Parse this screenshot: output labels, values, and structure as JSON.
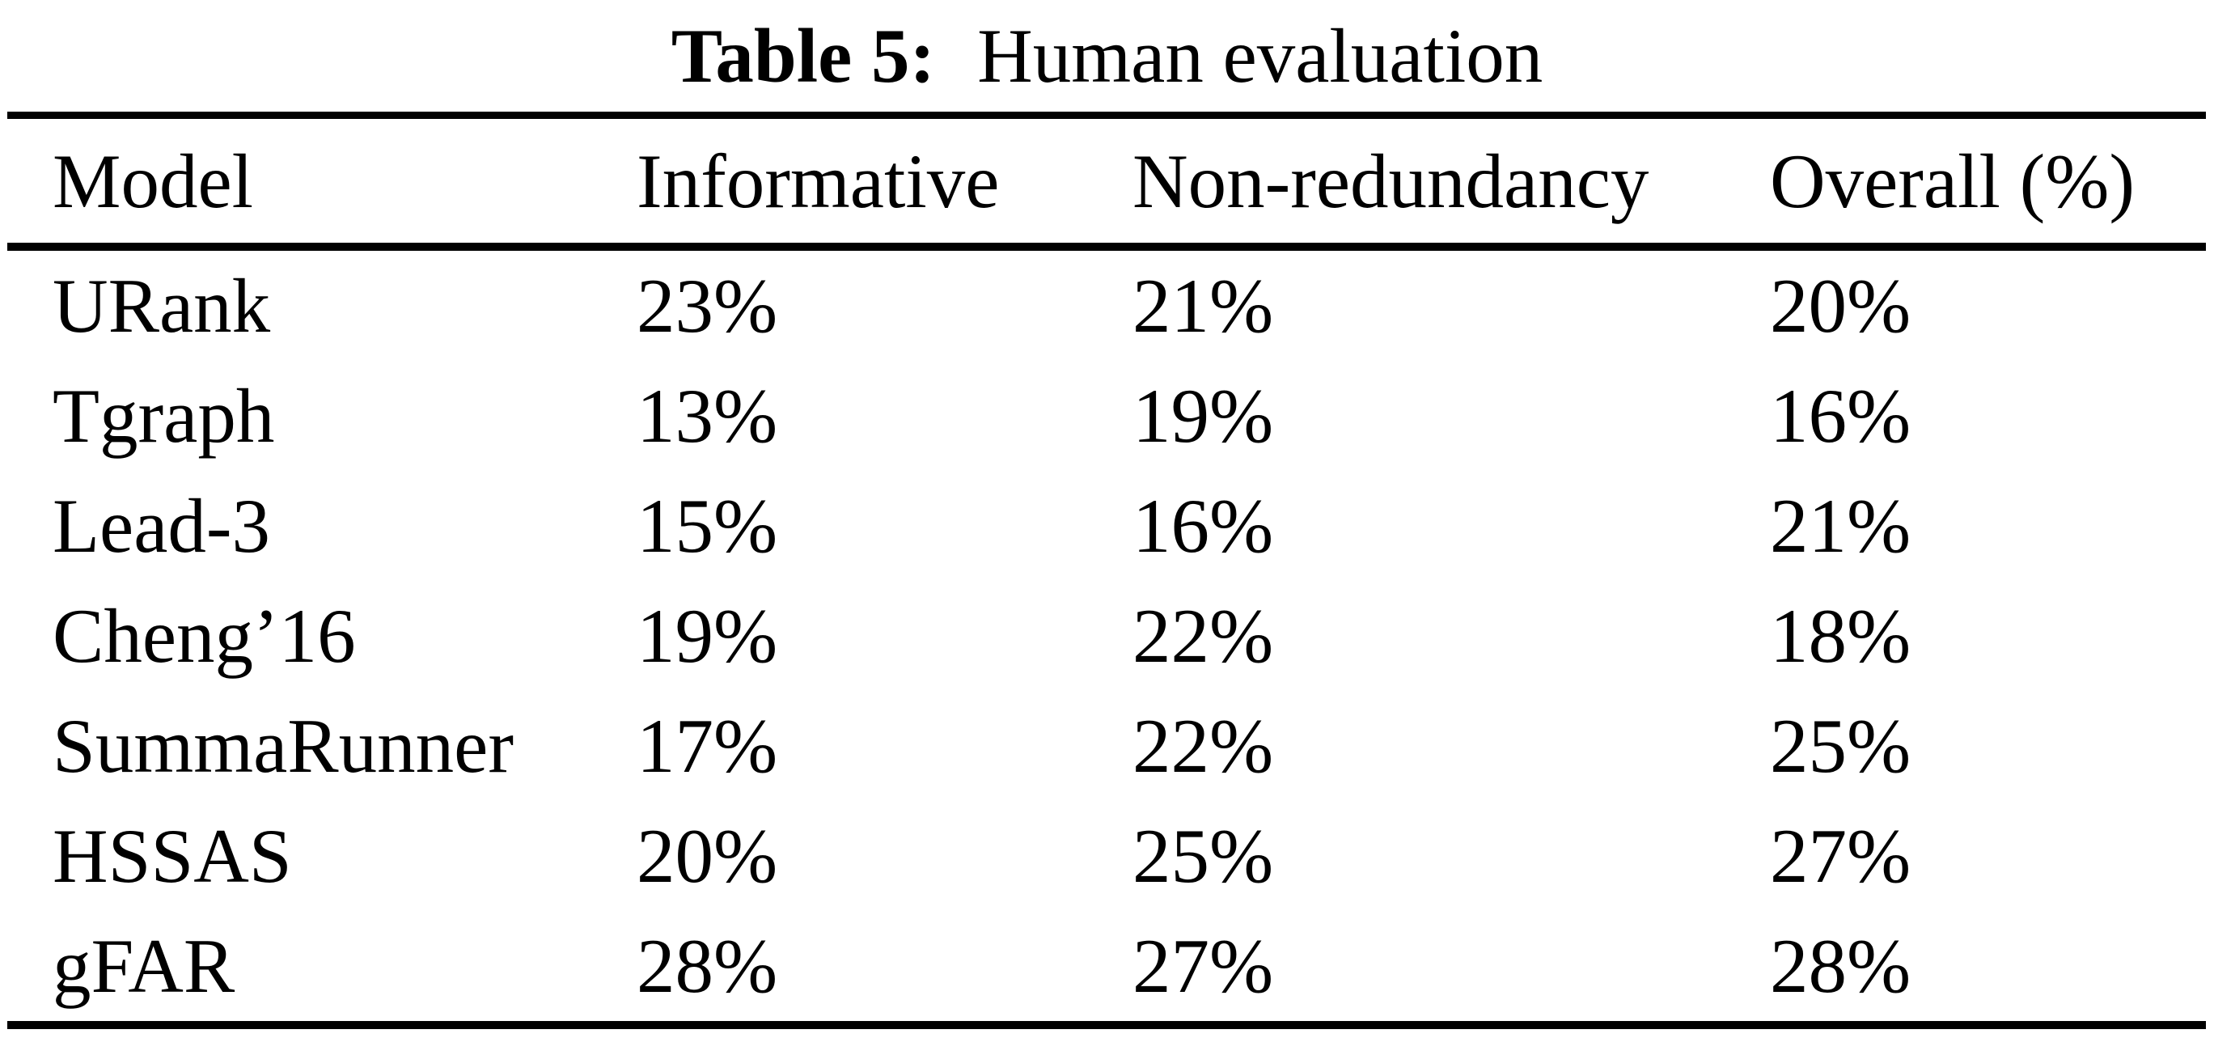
{
  "caption": {
    "label": "Table 5:",
    "text": "Human evaluation"
  },
  "table": {
    "columns": [
      "Model",
      "Informative",
      "Non-redundancy",
      "Overall (%)"
    ],
    "rows": [
      [
        "URank",
        "23%",
        "21%",
        "20%"
      ],
      [
        "Tgraph",
        "13%",
        "19%",
        "16%"
      ],
      [
        "Lead-3",
        "15%",
        "16%",
        "21%"
      ],
      [
        "Cheng’16",
        "19%",
        "22%",
        "18%"
      ],
      [
        "SummaRunner",
        "17%",
        "22%",
        "25%"
      ],
      [
        "HSSAS",
        "20%",
        "25%",
        "27%"
      ],
      [
        "gFAR",
        "28%",
        "27%",
        "28%"
      ]
    ]
  },
  "colors": {
    "text": "#000000",
    "background": "#ffffff",
    "rule": "#000000"
  }
}
